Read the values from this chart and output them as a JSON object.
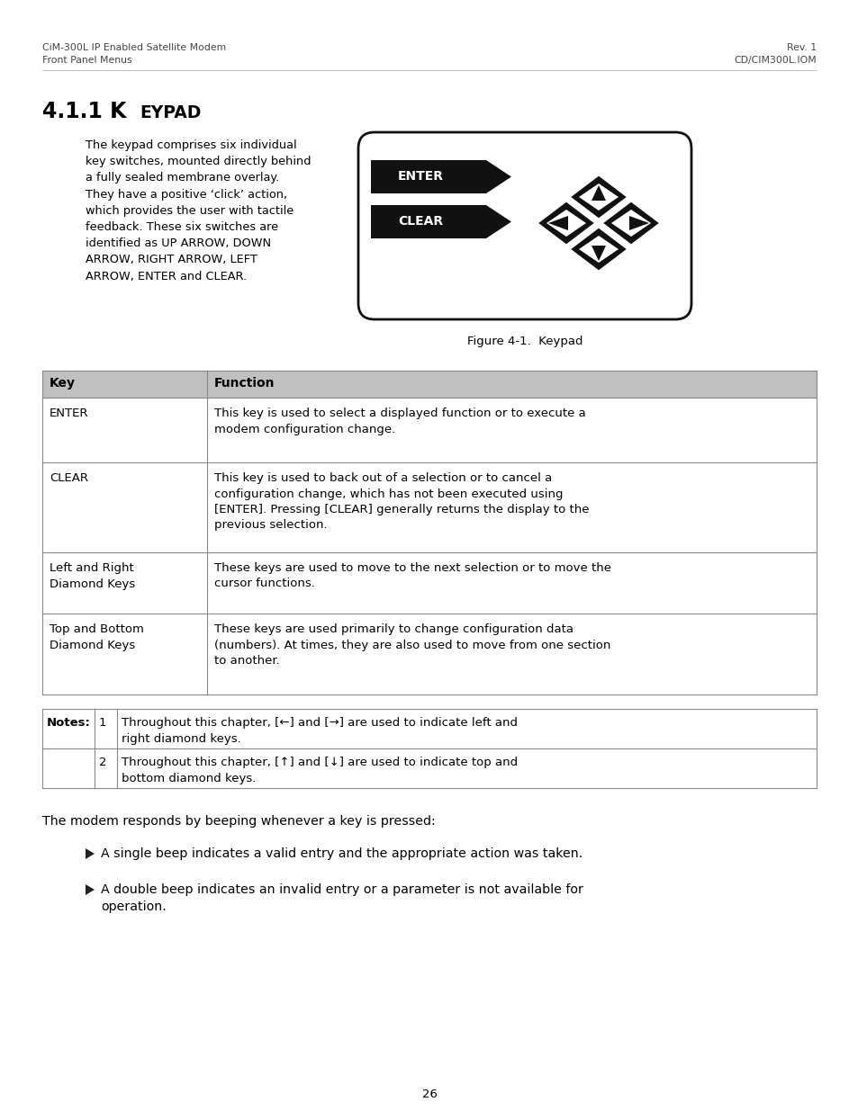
{
  "bg_color": "#ffffff",
  "header_left_line1": "CiM-300L IP Enabled Satellite Modem",
  "header_left_line2": "Front Panel Menus",
  "header_right_line1": "Rev. 1",
  "header_right_line2": "CD/CIM300L.IOM",
  "body_text": "The keypad comprises six individual\nkey switches, mounted directly behind\na fully sealed membrane overlay.\nThey have a positive ‘click’ action,\nwhich provides the user with tactile\nfeedback. These six switches are\nidentified as UP ARROW, DOWN\nARROW, RIGHT ARROW, LEFT\nARROW, ENTER and CLEAR.",
  "figure_caption": "Figure 4-1.  Keypad",
  "table_header": [
    "Key",
    "Function"
  ],
  "table_rows_col1": [
    "ENTER",
    "CLEAR",
    "Left and Right\nDiamond Keys",
    "Top and Bottom\nDiamond Keys"
  ],
  "table_rows_col2": [
    "This key is used to select a displayed function or to execute a\nmodem configuration change.",
    "This key is used to back out of a selection or to cancel a\nconfiguration change, which has not been executed using\n[ENTER]. Pressing [CLEAR] generally returns the display to the\nprevious selection.",
    "These keys are used to move to the next selection or to move the\ncursor functions.",
    "These keys are used primarily to change configuration data\n(numbers). At times, they are also used to move from one section\nto another."
  ],
  "notes_rows": [
    [
      "1",
      "Throughout this chapter, [←] and [→] are used to indicate left and\nright diamond keys."
    ],
    [
      "2",
      "Throughout this chapter, [↑] and [↓] are used to indicate top and\nbottom diamond keys."
    ]
  ],
  "bullet_items": [
    "A single beep indicates a valid entry and the appropriate action was taken.",
    "A double beep indicates an invalid entry or a parameter is not available for\noperation."
  ],
  "beep_intro": "The modem responds by beeping whenever a key is pressed:",
  "page_number": "26",
  "table_header_bg": "#c0c0c0",
  "table_row_bg": "#ffffff",
  "table_border_color": "#888888"
}
